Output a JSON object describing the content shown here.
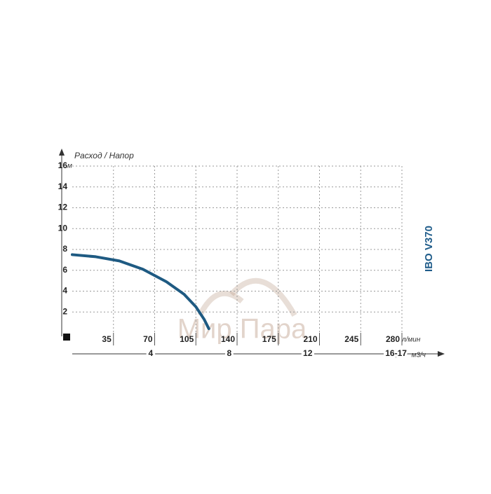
{
  "chart_data": {
    "type": "line",
    "title": "IBO V370",
    "y_label": "Расход / Напор",
    "y_unit": "м",
    "x_unit": "л/мин",
    "x2_unit": "м3/ч",
    "watermark": "Мир Пара",
    "x": [
      0,
      20,
      40,
      60,
      80,
      95,
      105,
      112,
      116
    ],
    "values": [
      7.5,
      7.3,
      6.9,
      6.1,
      4.9,
      3.7,
      2.5,
      1.3,
      0.4
    ],
    "color": "#1e5a82",
    "xlim": [
      0,
      280
    ],
    "xticks": [
      35,
      70,
      105,
      140,
      175,
      210,
      245,
      280
    ],
    "x2lim": [
      0,
      16.8
    ],
    "x2ticks": [
      4,
      8,
      12,
      {
        "value": 16.5,
        "label": "16-17"
      }
    ],
    "ylim": [
      0,
      16
    ],
    "yticks": [
      2,
      4,
      6,
      8,
      10,
      12,
      14,
      16
    ],
    "grid": true
  }
}
